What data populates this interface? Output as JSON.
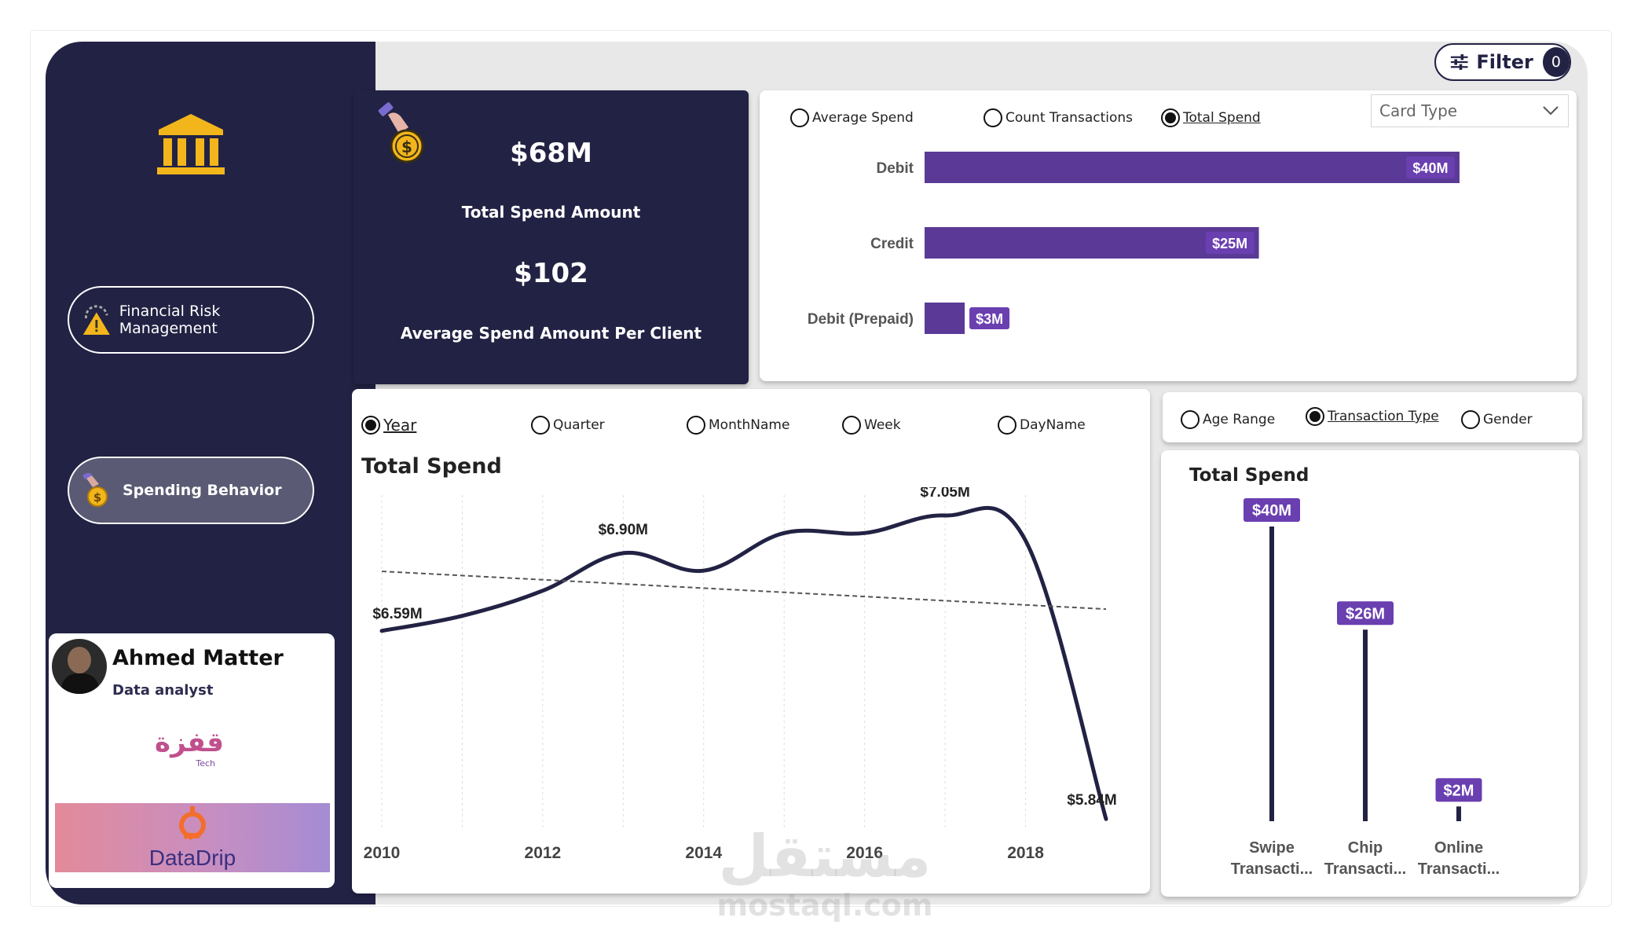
{
  "header": {
    "filter_label": "Filter",
    "filter_count": "0"
  },
  "sidebar": {
    "nav": [
      {
        "label": "Financial Risk Management"
      },
      {
        "label": "Spending Behavior"
      }
    ],
    "profile": {
      "name": "Ahmed Matter",
      "role": "Data analyst",
      "logo1_text": "قفزة",
      "logo1_sub": "Tech",
      "logo2_text": "DataDrip"
    }
  },
  "kpi": {
    "total_spend_value": "$68M",
    "total_spend_label": "Total Spend Amount",
    "avg_spend_value": "$102",
    "avg_spend_label": "Average Spend Amount Per Client"
  },
  "card_type_panel": {
    "measures": [
      {
        "label": "Average Spend",
        "selected": false
      },
      {
        "label": "Count Transactions",
        "selected": false
      },
      {
        "label": "Total Spend",
        "selected": true
      }
    ],
    "dropdown_placeholder": "Card Type"
  },
  "time_panel": {
    "options": [
      {
        "label": "Year",
        "selected": true
      },
      {
        "label": "Quarter",
        "selected": false
      },
      {
        "label": "MonthName",
        "selected": false
      },
      {
        "label": "Week",
        "selected": false
      },
      {
        "label": "DayName",
        "selected": false
      }
    ],
    "title": "Total Spend"
  },
  "dimension_panel": {
    "options": [
      {
        "label": "Age Range",
        "selected": false
      },
      {
        "label": "Transaction Type",
        "selected": true
      },
      {
        "label": "Gender",
        "selected": false
      }
    ],
    "title": "Total Spend"
  },
  "watermark": {
    "arabic": "مستقل",
    "latin": "mostaql.com"
  },
  "chart_data": [
    {
      "type": "bar",
      "orientation": "horizontal",
      "title": "",
      "categories": [
        "Debit",
        "Credit",
        "Debit (Prepaid)"
      ],
      "values": [
        40,
        25,
        3
      ],
      "labels": [
        "$40M",
        "$25M",
        "$3M"
      ],
      "unit": "$M",
      "xlim": [
        0,
        42
      ],
      "color": "#5a3a96"
    },
    {
      "type": "line",
      "title": "Total Spend",
      "x": [
        2010,
        2011,
        2012,
        2013,
        2014,
        2015,
        2016,
        2017,
        2018,
        2019
      ],
      "values": [
        6.59,
        6.65,
        6.75,
        6.9,
        6.83,
        6.98,
        6.98,
        7.05,
        6.95,
        5.84
      ],
      "point_labels": {
        "2010": "$6.59M",
        "2013": "$6.90M",
        "2017": "$7.05M",
        "2019": "$5.84M"
      },
      "x_ticks": [
        "2010",
        "2012",
        "2014",
        "2016",
        "2018"
      ],
      "trendline": true,
      "unit": "$M",
      "ylim": [
        5.8,
        7.1
      ],
      "color": "#222244"
    },
    {
      "type": "bar",
      "style": "lollipop",
      "title": "Total Spend",
      "categories": [
        "Swipe Transacti...",
        "Chip Transacti...",
        "Online Transacti..."
      ],
      "category_lines": [
        [
          "Swipe",
          "Transacti..."
        ],
        [
          "Chip",
          "Transacti..."
        ],
        [
          "Online",
          "Transacti..."
        ]
      ],
      "values": [
        40,
        26,
        2
      ],
      "labels": [
        "$40M",
        "$26M",
        "$2M"
      ],
      "unit": "$M",
      "ylim": [
        0,
        40
      ],
      "color": "#222244",
      "label_color": "#6a3fb0"
    }
  ]
}
